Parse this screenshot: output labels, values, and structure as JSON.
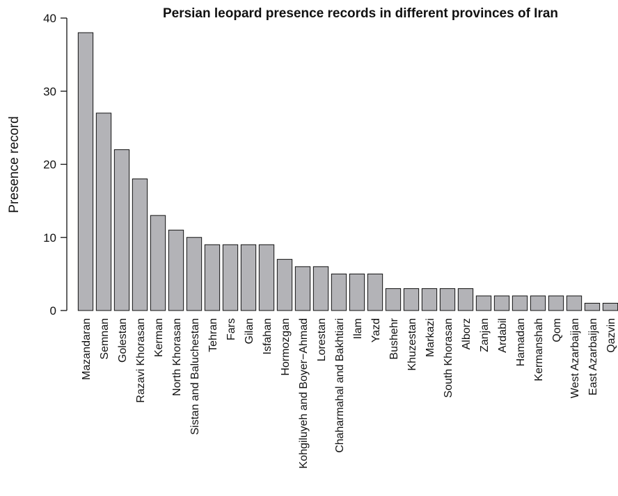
{
  "chart_data": {
    "type": "bar",
    "title": "Persian leopard presence records in different provinces of Iran",
    "ylabel": "Presence record",
    "xlabel": "",
    "ylim": [
      0,
      40
    ],
    "yticks": [
      0,
      10,
      20,
      30,
      40
    ],
    "grid": false,
    "legend": "none",
    "bar_color": "#b3b3b7",
    "bar_border_color": "#111111",
    "categories": [
      "Mazandaran",
      "Semnan",
      "Golestan",
      "Razavi Khorasan",
      "Kerman",
      "North Khorasan",
      "Sistan and Baluchestan",
      "Tehran",
      "Fars",
      "Gilan",
      "Isfahan",
      "Hormozgan",
      "Kohgiluyeh and Boyer−Ahmad",
      "Lorestan",
      "Chaharmahal and Bakhtiari",
      "Ilam",
      "Yazd",
      "Bushehr",
      "Khuzestan",
      "Markazi",
      "South Khorasan",
      "Alborz",
      "Zanjan",
      "Ardabil",
      "Hamadan",
      "Kermanshah",
      "Qom",
      "West Azarbaijan",
      "East Azarbaijan",
      "Qazvin"
    ],
    "values": [
      38,
      27,
      22,
      18,
      13,
      11,
      10,
      9,
      9,
      9,
      9,
      7,
      6,
      6,
      5,
      5,
      5,
      3,
      3,
      3,
      3,
      3,
      2,
      2,
      2,
      2,
      2,
      2,
      1,
      1
    ]
  }
}
